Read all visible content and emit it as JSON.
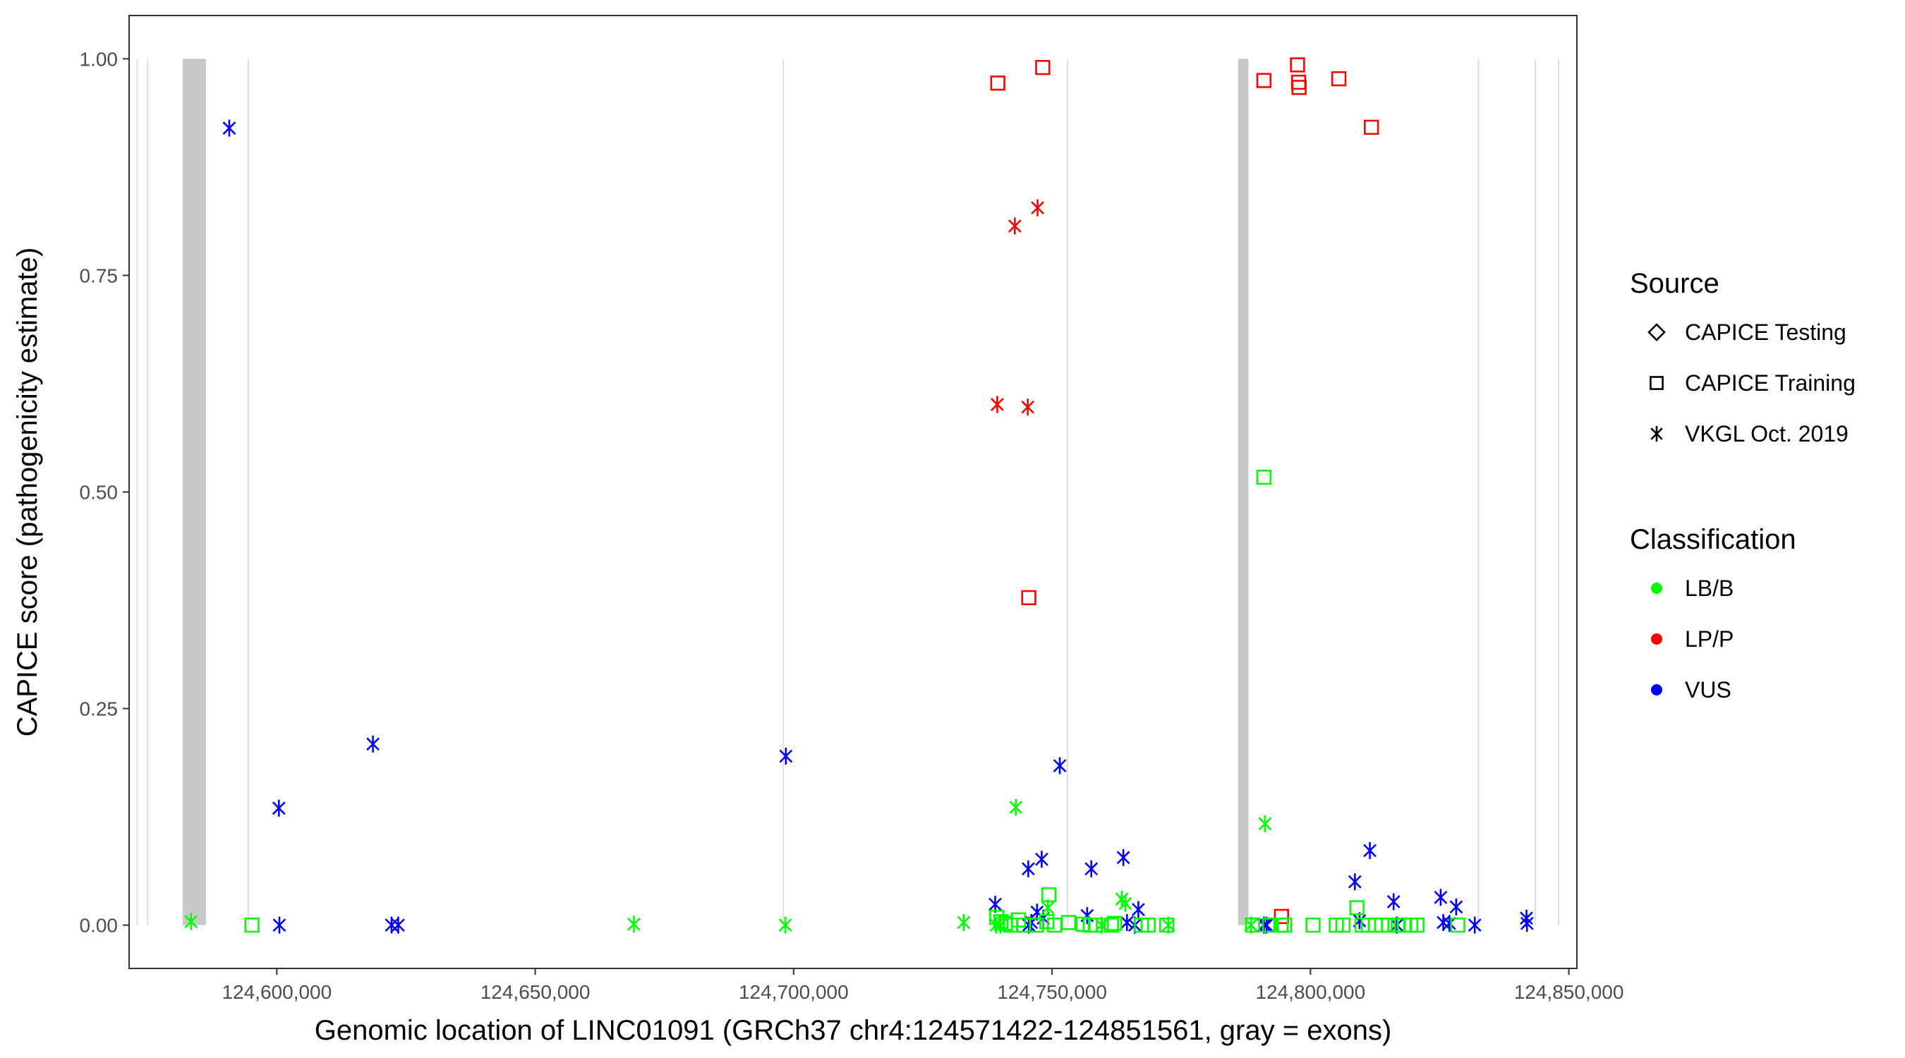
{
  "chart_data": {
    "type": "scatter",
    "title": "",
    "xlabel": "Genomic location of LINC01091 (GRCh37 chr4:124571422-124851561, gray = exons)",
    "ylabel": "CAPICE score (pathogenicity estimate)",
    "xlim": [
      124571422,
      124851561
    ],
    "ylim": [
      -0.05,
      1.05
    ],
    "x_ticks": [
      124600000,
      124650000,
      124700000,
      124750000,
      124800000,
      124850000
    ],
    "x_tick_labels": [
      "124,600,000",
      "124,650,000",
      "124,700,000",
      "124,750,000",
      "124,800,000",
      "124,850,000"
    ],
    "y_ticks": [
      0,
      0.25,
      0.5,
      0.75,
      1
    ],
    "y_tick_labels": [
      "0.00",
      "0.25",
      "0.50",
      "0.75",
      "1.00"
    ],
    "grid": true,
    "exons": [
      [
        124581800,
        124586300
      ],
      [
        124786000,
        124788000
      ]
    ],
    "gene_lines": [
      124573000,
      124575000,
      124594500,
      124698000,
      124753000,
      124832500,
      124843500,
      124848000
    ],
    "colors": {
      "LB/B": "#00ff00",
      "LP/P": "#ff0000",
      "VUS": "#0000ff"
    },
    "legend": {
      "position": "right",
      "source_title": "Source",
      "source_items": [
        {
          "label": "CAPICE Testing",
          "shape": "diamond"
        },
        {
          "label": "CAPICE Training",
          "shape": "square"
        },
        {
          "label": "VKGL Oct. 2019",
          "shape": "asterisk"
        }
      ],
      "class_title": "Classification",
      "class_items": [
        {
          "label": "LB/B",
          "color": "#00ff00"
        },
        {
          "label": "LP/P",
          "color": "#ff0000"
        },
        {
          "label": "VUS",
          "color": "#0000ff"
        }
      ]
    },
    "series": [
      {
        "source": "CAPICE Training",
        "classification": "LP/P",
        "points": [
          [
            124739500,
            0.972
          ],
          [
            124748200,
            0.99
          ],
          [
            124745500,
            0.378
          ],
          [
            124791000,
            0.975
          ],
          [
            124797500,
            0.993
          ],
          [
            124797700,
            0.973
          ],
          [
            124797800,
            0.967
          ],
          [
            124805500,
            0.977
          ],
          [
            124811800,
            0.921
          ],
          [
            124794400,
            0.01
          ]
        ]
      },
      {
        "source": "VKGL Oct. 2019",
        "classification": "LP/P",
        "points": [
          [
            124742800,
            0.807
          ],
          [
            124747200,
            0.828
          ],
          [
            124739400,
            0.601
          ],
          [
            124745300,
            0.598
          ]
        ]
      },
      {
        "source": "VKGL Oct. 2019",
        "classification": "VUS",
        "points": [
          [
            124590800,
            0.92
          ],
          [
            124618600,
            0.209
          ],
          [
            124698500,
            0.195
          ],
          [
            124600400,
            0.135
          ],
          [
            124751500,
            0.184
          ],
          [
            124763800,
            0.078
          ],
          [
            124748000,
            0.076
          ],
          [
            124745400,
            0.065
          ],
          [
            124757600,
            0.065
          ],
          [
            124739000,
            0.024
          ],
          [
            124766700,
            0.018
          ],
          [
            124756800,
            0.011
          ],
          [
            124747100,
            0.015
          ],
          [
            124748300,
            0.008
          ],
          [
            124746000,
            0.003
          ],
          [
            124600500,
            0.0
          ],
          [
            124622200,
            0.0
          ],
          [
            124623500,
            0.0
          ],
          [
            124745500,
            0.0
          ],
          [
            124764500,
            0.003
          ],
          [
            124766000,
            0.0
          ],
          [
            124791000,
            0.0
          ],
          [
            124791500,
            0.0
          ],
          [
            124811500,
            0.086
          ],
          [
            124808600,
            0.05
          ],
          [
            124816100,
            0.027
          ],
          [
            124825200,
            0.032
          ],
          [
            124828200,
            0.021
          ],
          [
            124809500,
            0.005
          ],
          [
            124825700,
            0.003
          ],
          [
            124826900,
            0.002
          ],
          [
            124816700,
            0.0
          ],
          [
            124831800,
            0.0
          ],
          [
            124841800,
            0.008
          ],
          [
            124841900,
            0.002
          ]
        ]
      },
      {
        "source": "VKGL Oct. 2019",
        "classification": "LB/B",
        "points": [
          [
            124583400,
            0.004
          ],
          [
            124669100,
            0.001
          ],
          [
            124698400,
            0.0
          ],
          [
            124732900,
            0.003
          ],
          [
            124743000,
            0.136
          ],
          [
            124763500,
            0.03
          ],
          [
            124764200,
            0.025
          ],
          [
            124749200,
            0.02
          ],
          [
            124791200,
            0.117
          ],
          [
            124739200,
            0.0
          ],
          [
            124740000,
            0.0
          ],
          [
            124759600,
            0.0
          ],
          [
            124772500,
            0.0
          ],
          [
            124788500,
            0.0
          ]
        ]
      },
      {
        "source": "CAPICE Training",
        "classification": "LB/B",
        "points": [
          [
            124791000,
            0.517
          ],
          [
            124749400,
            0.035
          ],
          [
            124809000,
            0.02
          ],
          [
            124595200,
            0.0
          ],
          [
            124739300,
            0.009
          ],
          [
            124740100,
            0.004
          ],
          [
            124741000,
            0.002
          ],
          [
            124742000,
            0.0
          ],
          [
            124743500,
            0.006
          ],
          [
            124744500,
            0.0
          ],
          [
            124747000,
            0.0
          ],
          [
            124749000,
            0.004
          ],
          [
            124750500,
            0.0
          ],
          [
            124753200,
            0.003
          ],
          [
            124756000,
            0.001
          ],
          [
            124757400,
            0.0
          ],
          [
            124758400,
            0.0
          ],
          [
            124761500,
            0.0
          ],
          [
            124762100,
            0.002
          ],
          [
            124767300,
            0.0
          ],
          [
            124768600,
            0.0
          ],
          [
            124772200,
            0.0
          ],
          [
            124788800,
            0.0
          ],
          [
            124792100,
            0.0
          ],
          [
            124794300,
            0.0
          ],
          [
            124795000,
            0.0
          ],
          [
            124800500,
            0.0
          ],
          [
            124805000,
            0.0
          ],
          [
            124806300,
            0.0
          ],
          [
            124810000,
            0.0
          ],
          [
            124811200,
            0.0
          ],
          [
            124812600,
            0.0
          ],
          [
            124813800,
            0.0
          ],
          [
            124815100,
            0.0
          ],
          [
            124817000,
            0.0
          ],
          [
            124818200,
            0.0
          ],
          [
            124819400,
            0.0
          ],
          [
            124820600,
            0.0
          ],
          [
            124828500,
            0.0
          ]
        ]
      }
    ]
  }
}
